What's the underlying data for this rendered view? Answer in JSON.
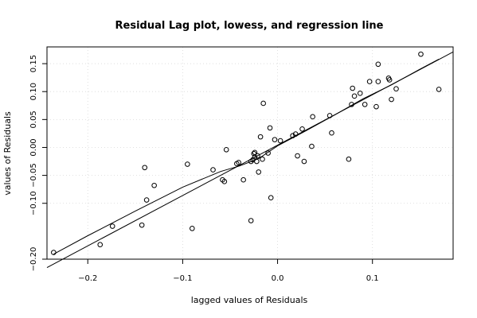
{
  "chart_data": {
    "type": "scatter",
    "title": "Residual Lag plot, lowess, and regression line",
    "xlabel": "lagged values of Residuals",
    "ylabel": "values of Residuals",
    "xlim": [
      -0.243,
      0.185
    ],
    "ylim": [
      -0.2,
      0.18
    ],
    "grid": true,
    "x_ticks": [
      -0.2,
      -0.1,
      0.0,
      0.1
    ],
    "x_tick_labels": [
      "−0.2",
      "−0.1",
      "0.0",
      "0.1"
    ],
    "y_ticks": [
      -0.2,
      -0.1,
      -0.05,
      0.0,
      0.05,
      0.1,
      0.15
    ],
    "y_tick_labels": [
      "−0.20",
      "−0.10",
      "−0.05",
      "0.00",
      "0.05",
      "0.10",
      "0.15"
    ],
    "points": [
      [
        -0.236,
        -0.188
      ],
      [
        -0.187,
        -0.174
      ],
      [
        -0.174,
        -0.141
      ],
      [
        -0.143,
        -0.139
      ],
      [
        -0.14,
        -0.036
      ],
      [
        -0.138,
        -0.094
      ],
      [
        -0.13,
        -0.068
      ],
      [
        -0.095,
        -0.03
      ],
      [
        -0.09,
        -0.145
      ],
      [
        -0.068,
        -0.04
      ],
      [
        -0.058,
        -0.058
      ],
      [
        -0.056,
        -0.061
      ],
      [
        -0.054,
        -0.004
      ],
      [
        -0.043,
        -0.029
      ],
      [
        -0.041,
        -0.027
      ],
      [
        -0.036,
        -0.058
      ],
      [
        -0.028,
        -0.131
      ],
      [
        -0.028,
        -0.025
      ],
      [
        -0.026,
        -0.022
      ],
      [
        -0.025,
        -0.011
      ],
      [
        -0.024,
        -0.009
      ],
      [
        -0.024,
        -0.017
      ],
      [
        -0.022,
        -0.025
      ],
      [
        -0.021,
        -0.015
      ],
      [
        -0.02,
        -0.044
      ],
      [
        -0.018,
        0.019
      ],
      [
        -0.016,
        -0.021
      ],
      [
        -0.015,
        0.079
      ],
      [
        -0.01,
        -0.01
      ],
      [
        -0.008,
        0.035
      ],
      [
        -0.007,
        -0.09
      ],
      [
        -0.003,
        0.014
      ],
      [
        0.003,
        0.012
      ],
      [
        0.016,
        0.021
      ],
      [
        0.019,
        0.024
      ],
      [
        0.021,
        -0.015
      ],
      [
        0.026,
        0.033
      ],
      [
        0.028,
        -0.025
      ],
      [
        0.036,
        0.002
      ],
      [
        0.037,
        0.055
      ],
      [
        0.055,
        0.057
      ],
      [
        0.057,
        0.026
      ],
      [
        0.075,
        -0.021
      ],
      [
        0.078,
        0.077
      ],
      [
        0.079,
        0.106
      ],
      [
        0.081,
        0.092
      ],
      [
        0.087,
        0.097
      ],
      [
        0.092,
        0.077
      ],
      [
        0.097,
        0.118
      ],
      [
        0.104,
        0.073
      ],
      [
        0.106,
        0.118
      ],
      [
        0.106,
        0.149
      ],
      [
        0.117,
        0.124
      ],
      [
        0.118,
        0.121
      ],
      [
        0.12,
        0.086
      ],
      [
        0.125,
        0.105
      ],
      [
        0.151,
        0.167
      ],
      [
        0.17,
        0.104
      ]
    ],
    "regression_line": [
      [
        -0.243,
        -0.215
      ],
      [
        0.185,
        0.171
      ]
    ],
    "lowess_curve": [
      [
        -0.236,
        -0.191
      ],
      [
        -0.2,
        -0.158
      ],
      [
        -0.15,
        -0.114
      ],
      [
        -0.1,
        -0.071
      ],
      [
        -0.06,
        -0.043
      ],
      [
        -0.04,
        -0.033
      ],
      [
        -0.02,
        -0.02
      ],
      [
        0.0,
        0.003
      ],
      [
        0.03,
        0.03
      ],
      [
        0.06,
        0.058
      ],
      [
        0.09,
        0.087
      ],
      [
        0.12,
        0.112
      ],
      [
        0.15,
        0.14
      ],
      [
        0.17,
        0.158
      ]
    ]
  }
}
